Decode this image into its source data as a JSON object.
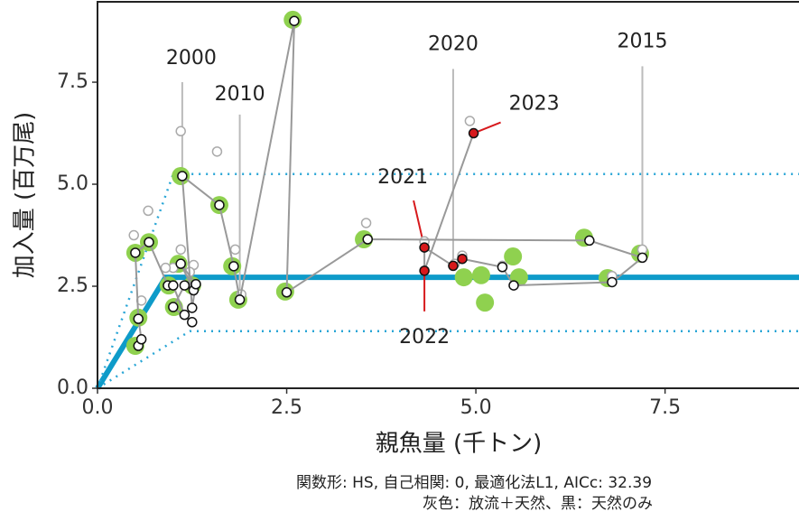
{
  "chart_data": {
    "type": "scatter",
    "xlabel": "親魚量 (千トン)",
    "ylabel": "加入量 (百万尾)",
    "xlim": [
      0,
      9.27
    ],
    "ylim": [
      0,
      9.47
    ],
    "xticks": [
      {
        "value": 0,
        "label": "0.0"
      },
      {
        "value": 2.5,
        "label": "2.5"
      },
      {
        "value": 5,
        "label": "5.0"
      },
      {
        "value": 7.5,
        "label": "7.5"
      }
    ],
    "yticks": [
      {
        "value": 0,
        "label": "0.0"
      },
      {
        "value": 2.5,
        "label": "2.5"
      },
      {
        "value": 5,
        "label": "5.0"
      },
      {
        "value": 7.5,
        "label": "7.5"
      }
    ],
    "fit": {
      "color": "#0e9bc9",
      "x": [
        0,
        0.9
      ],
      "y": [
        0,
        2.72
      ]
    },
    "fit_upper": {
      "color": "#2aa6d6",
      "x": [
        0,
        1.0
      ],
      "y": [
        0,
        5.25
      ]
    },
    "fit_lower": {
      "color": "#2aa6d6",
      "x": [
        0,
        1.22
      ],
      "y": [
        0,
        1.4
      ]
    },
    "series": [
      {
        "color": "#8fd14f",
        "x": [
          0.5,
          0.54,
          0.5,
          0.68,
          0.94,
          1.01,
          1.1,
          1.07,
          1.25,
          1.61,
          1.78,
          1.86,
          2.48,
          2.58,
          3.52,
          4.84,
          5.07,
          5.12,
          5.49,
          5.57,
          6.43,
          6.74,
          7.17
        ],
        "y": [
          3.32,
          1.73,
          1.04,
          3.58,
          2.52,
          1.99,
          5.2,
          3.05,
          2.52,
          4.49,
          2.99,
          2.17,
          2.37,
          9.03,
          3.65,
          2.72,
          2.77,
          2.1,
          3.23,
          2.72,
          3.69,
          2.7,
          3.3
        ]
      },
      {
        "color": "#aaaaaa",
        "x": [
          1.1,
          1.58,
          0.67,
          0.48,
          0.58,
          1.1,
          1.0,
          1.27,
          1.22,
          1.82,
          4.92,
          3.55,
          4.32,
          4.72,
          4.82,
          7.2,
          6.8,
          5.35,
          1.9,
          0.9
        ],
        "y": [
          6.3,
          5.8,
          4.35,
          3.75,
          2.15,
          3.4,
          2.95,
          3.02,
          2.85,
          3.4,
          6.55,
          4.05,
          3.6,
          3.05,
          3.25,
          3.4,
          2.75,
          3.0,
          2.3,
          2.95
        ]
      },
      {
        "color": "#ffffff",
        "line_color": "#999999",
        "x": [
          0.54,
          0.58,
          0.54,
          0.5,
          0.68,
          0.93,
          1.0,
          1.15,
          1.25,
          1.0,
          1.15,
          1.27,
          1.1,
          1.3,
          1.25,
          1.12,
          1.61,
          1.8,
          1.88,
          2.6,
          2.5,
          3.57,
          6.5,
          7.2,
          6.8,
          5.5,
          5.35,
          4.82,
          4.7,
          4.32,
          4.32,
          4.97
        ],
        "y": [
          1.04,
          1.2,
          1.7,
          3.32,
          3.58,
          2.52,
          2.52,
          1.8,
          1.62,
          1.99,
          2.52,
          2.4,
          3.05,
          2.55,
          1.97,
          5.2,
          4.49,
          2.99,
          2.17,
          9.0,
          2.35,
          3.65,
          3.62,
          3.2,
          2.6,
          2.52,
          2.97,
          3.17,
          3.0,
          3.45,
          2.88,
          6.25
        ],
        "point_colors": [
          "#ffffff",
          "#ffffff",
          "#ffffff",
          "#ffffff",
          "#ffffff",
          "#ffffff",
          "#ffffff",
          "#ffffff",
          "#ffffff",
          "#ffffff",
          "#ffffff",
          "#ffffff",
          "#ffffff",
          "#ffffff",
          "#ffffff",
          "#ffffff",
          "#ffffff",
          "#ffffff",
          "#ffffff",
          "#ffffff",
          "#ffffff",
          "#ffffff",
          "#ffffff",
          "#ffffff",
          "#ffffff",
          "#ffffff",
          "#ffffff",
          "#d7191c",
          "#d7191c",
          "#d7191c",
          "#d7191c",
          "#d7191c"
        ]
      }
    ],
    "annotations": [
      {
        "text": "2000",
        "x": 1.12,
        "y": 5.2
      },
      {
        "text": "2010",
        "x": 1.88,
        "y": 2.17
      },
      {
        "text": "2020",
        "x": 4.7,
        "y": 3.0
      },
      {
        "text": "2015",
        "x": 7.2,
        "y": 3.2
      },
      {
        "text": "2021",
        "x": 4.32,
        "y": 3.45
      },
      {
        "text": "2022",
        "x": 4.32,
        "y": 2.88
      },
      {
        "text": "2023",
        "x": 4.97,
        "y": 6.25
      }
    ],
    "notes": [
      "関数形: HS, 自己相関: 0, 最適化法L1, AICc: 32.39",
      "灰色：放流＋天然、黒：天然のみ"
    ]
  }
}
